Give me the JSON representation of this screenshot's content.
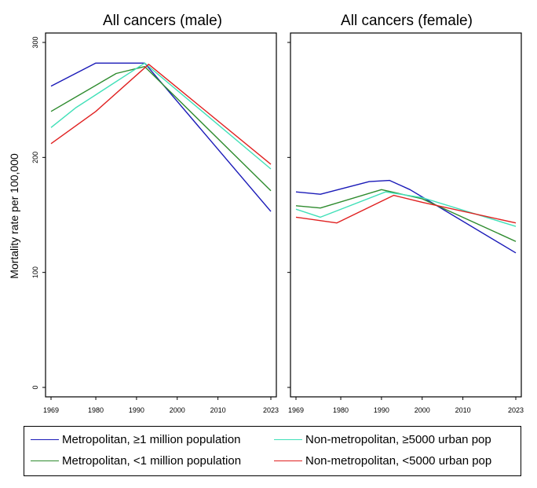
{
  "chart_data": [
    {
      "type": "line",
      "title": "All cancers (male)",
      "ylabel": "Mortality rate per 100,000",
      "xlim": [
        1969,
        2023
      ],
      "ylim": [
        0,
        300
      ],
      "x_ticks": [
        1969,
        1980,
        1990,
        2000,
        2010,
        2023
      ],
      "y_ticks": [
        0,
        100,
        200,
        300
      ],
      "series": [
        {
          "name": "Metropolitan, ≥1 million population",
          "color": "#1a1ab8",
          "x": [
            1969,
            1980,
            1992,
            2023
          ],
          "values": [
            262,
            282,
            282,
            153
          ]
        },
        {
          "name": "Metropolitan, <1 million population",
          "color": "#2e8b2e",
          "x": [
            1969,
            1985,
            1992,
            2023
          ],
          "values": [
            240,
            273,
            279,
            171
          ]
        },
        {
          "name": "Non-metropolitan, ≥5000 urban pop",
          "color": "#40e0b8",
          "x": [
            1969,
            1975,
            1992,
            2023
          ],
          "values": [
            226,
            243,
            282,
            190
          ]
        },
        {
          "name": "Non-metropolitan, <5000 urban pop",
          "color": "#e02020",
          "x": [
            1969,
            1980,
            1993,
            2023
          ],
          "values": [
            212,
            240,
            281,
            194
          ]
        }
      ]
    },
    {
      "type": "line",
      "title": "All cancers (female)",
      "xlim": [
        1969,
        2023
      ],
      "ylim": [
        0,
        300
      ],
      "x_ticks": [
        1969,
        1980,
        1990,
        2000,
        2010,
        2023
      ],
      "y_ticks": [
        0,
        100,
        200,
        300
      ],
      "series": [
        {
          "name": "Metropolitan, ≥1 million population",
          "color": "#1a1ab8",
          "x": [
            1969,
            1975,
            1987,
            1992,
            1997,
            2023
          ],
          "values": [
            170,
            168,
            179,
            180,
            172,
            117
          ]
        },
        {
          "name": "Metropolitan, <1 million population",
          "color": "#2e8b2e",
          "x": [
            1969,
            1975,
            1990,
            2000,
            2023
          ],
          "values": [
            158,
            156,
            172,
            164,
            127
          ]
        },
        {
          "name": "Non-metropolitan, ≥5000 urban pop",
          "color": "#40e0b8",
          "x": [
            1969,
            1975,
            1991,
            2000,
            2023
          ],
          "values": [
            155,
            148,
            170,
            165,
            140
          ]
        },
        {
          "name": "Non-metropolitan, <5000 urban pop",
          "color": "#e02020",
          "x": [
            1969,
            1979,
            1993,
            2000,
            2023
          ],
          "values": [
            148,
            143,
            167,
            161,
            143
          ]
        }
      ]
    }
  ],
  "legend": {
    "items": [
      {
        "label": "Metropolitan, ≥1 million population",
        "color": "#1a1ab8"
      },
      {
        "label": "Non-metropolitan, ≥5000 urban pop",
        "color": "#40e0b8"
      },
      {
        "label": "Metropolitan, <1 million population",
        "color": "#2e8b2e"
      },
      {
        "label": "Non-metropolitan, <5000 urban pop",
        "color": "#e02020"
      }
    ]
  }
}
